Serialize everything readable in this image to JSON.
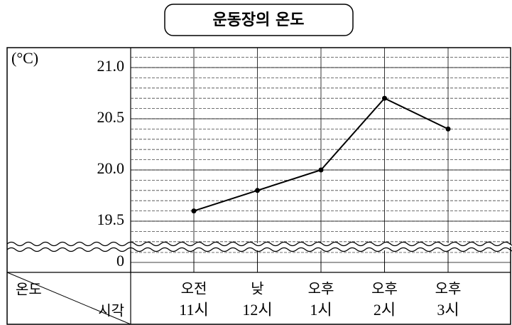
{
  "chart_data": {
    "type": "line",
    "title": "운동장의 온도",
    "y_label": "(°C)",
    "row_label": "온도",
    "column_label": "시각",
    "categories": [
      [
        "오전",
        "11시"
      ],
      [
        "낮",
        "12시"
      ],
      [
        "오후",
        "1시"
      ],
      [
        "오후",
        "2시"
      ],
      [
        "오후",
        "3시"
      ]
    ],
    "values": [
      19.6,
      19.8,
      20.0,
      20.7,
      20.4
    ],
    "color": "#000000",
    "ylim": [
      19.3,
      21.2
    ],
    "yticks": [
      {
        "value": 19.5,
        "label": "19.5"
      },
      {
        "value": 20,
        "label": "20.0"
      },
      {
        "value": 20.5,
        "label": "20.5"
      },
      {
        "value": 21,
        "label": "21.0"
      }
    ],
    "broken_axis_tick": 0,
    "minor_grid_step": 0.1,
    "grid": true
  }
}
